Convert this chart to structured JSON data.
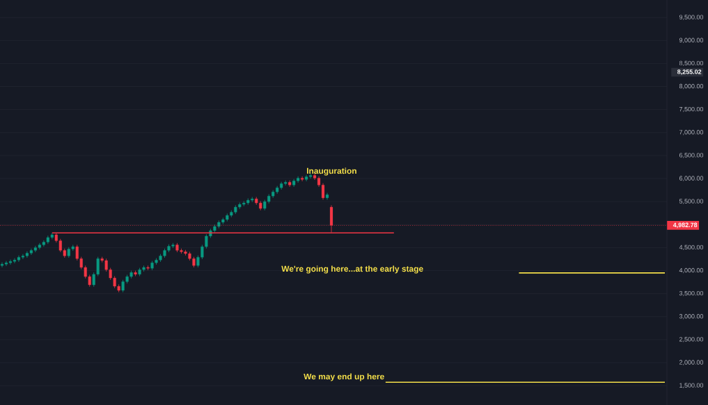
{
  "chart_data": {
    "type": "candlestick",
    "categories": [
      null,
      null,
      null,
      null,
      null,
      null,
      null,
      null,
      null,
      null,
      null,
      null,
      null,
      null,
      null,
      null,
      null,
      null,
      null,
      null,
      null,
      null,
      null,
      null,
      null,
      null,
      null,
      null,
      null,
      null,
      null,
      null,
      null,
      null,
      null,
      null,
      null,
      null,
      null,
      null,
      null,
      null,
      null,
      null,
      null,
      null,
      null,
      null,
      null,
      null,
      null,
      null,
      null,
      null,
      null,
      null,
      null,
      null,
      null,
      null,
      null,
      null,
      null,
      null,
      null,
      null,
      null,
      null,
      null,
      null,
      null,
      null,
      null,
      null,
      null,
      null,
      null,
      null,
      null,
      null,
      null,
      null,
      null,
      null,
      null,
      null,
      null,
      null,
      null,
      null,
      null,
      null,
      null,
      null,
      null,
      null,
      null,
      null,
      null,
      null,
      null,
      null,
      null,
      null,
      null,
      null,
      null,
      null,
      null,
      null,
      null,
      null,
      null,
      null,
      null,
      null,
      null,
      null,
      null,
      null,
      null,
      null,
      null,
      null,
      null,
      null,
      null,
      null,
      null,
      null,
      null,
      null,
      null,
      null,
      null,
      null,
      null,
      null,
      null,
      null,
      null,
      null,
      null,
      null,
      null,
      null,
      null,
      null,
      null,
      null,
      null,
      null,
      null,
      null,
      null,
      null,
      null,
      null,
      null,
      null
    ],
    "ohlc": [
      [
        4110,
        4180,
        4070,
        4140
      ],
      [
        4140,
        4210,
        4100,
        4170
      ],
      [
        4170,
        4240,
        4130,
        4200
      ],
      [
        4200,
        4270,
        4160,
        4230
      ],
      [
        4230,
        4330,
        4190,
        4290
      ],
      [
        4290,
        4360,
        4250,
        4320
      ],
      [
        4320,
        4420,
        4280,
        4380
      ],
      [
        4380,
        4480,
        4340,
        4440
      ],
      [
        4440,
        4540,
        4400,
        4500
      ],
      [
        4500,
        4600,
        4460,
        4560
      ],
      [
        4560,
        4660,
        4520,
        4620
      ],
      [
        4620,
        4760,
        4580,
        4720
      ],
      [
        4720,
        4820,
        4680,
        4780
      ],
      [
        4780,
        4820,
        4610,
        4650
      ],
      [
        4650,
        4690,
        4400,
        4440
      ],
      [
        4440,
        4480,
        4280,
        4320
      ],
      [
        4320,
        4510,
        4280,
        4470
      ],
      [
        4470,
        4560,
        4430,
        4520
      ],
      [
        4520,
        4560,
        4220,
        4260
      ],
      [
        4260,
        4300,
        4030,
        4070
      ],
      [
        4070,
        4110,
        3830,
        3870
      ],
      [
        3870,
        3910,
        3650,
        3690
      ],
      [
        3690,
        3960,
        3650,
        3920
      ],
      [
        3920,
        4300,
        3880,
        4260
      ],
      [
        4260,
        4300,
        4180,
        4220
      ],
      [
        4220,
        4260,
        3980,
        4020
      ],
      [
        4020,
        4060,
        3800,
        3840
      ],
      [
        3840,
        3880,
        3620,
        3660
      ],
      [
        3660,
        3700,
        3530,
        3570
      ],
      [
        3570,
        3800,
        3530,
        3760
      ],
      [
        3760,
        3910,
        3720,
        3870
      ],
      [
        3870,
        4000,
        3830,
        3960
      ],
      [
        3960,
        4000,
        3880,
        3920
      ],
      [
        3920,
        4060,
        3880,
        4020
      ],
      [
        4020,
        4110,
        3980,
        4070
      ],
      [
        4070,
        4110,
        4010,
        4050
      ],
      [
        4050,
        4210,
        4010,
        4170
      ],
      [
        4170,
        4270,
        4130,
        4230
      ],
      [
        4230,
        4360,
        4190,
        4320
      ],
      [
        4320,
        4480,
        4280,
        4440
      ],
      [
        4440,
        4570,
        4400,
        4530
      ],
      [
        4530,
        4600,
        4490,
        4560
      ],
      [
        4560,
        4600,
        4400,
        4440
      ],
      [
        4440,
        4480,
        4370,
        4410
      ],
      [
        4410,
        4450,
        4330,
        4370
      ],
      [
        4370,
        4410,
        4220,
        4260
      ],
      [
        4260,
        4300,
        4070,
        4110
      ],
      [
        4110,
        4330,
        4070,
        4290
      ],
      [
        4290,
        4560,
        4250,
        4520
      ],
      [
        4520,
        4790,
        4480,
        4750
      ],
      [
        4750,
        4910,
        4710,
        4870
      ],
      [
        4870,
        5000,
        4830,
        4960
      ],
      [
        4960,
        5090,
        4920,
        5050
      ],
      [
        5050,
        5150,
        5010,
        5110
      ],
      [
        5110,
        5240,
        5070,
        5200
      ],
      [
        5200,
        5310,
        5160,
        5270
      ],
      [
        5270,
        5420,
        5230,
        5380
      ],
      [
        5380,
        5480,
        5340,
        5440
      ],
      [
        5440,
        5510,
        5400,
        5470
      ],
      [
        5470,
        5570,
        5430,
        5530
      ],
      [
        5530,
        5600,
        5490,
        5560
      ],
      [
        5560,
        5600,
        5430,
        5470
      ],
      [
        5470,
        5510,
        5310,
        5350
      ],
      [
        5350,
        5540,
        5310,
        5500
      ],
      [
        5500,
        5660,
        5460,
        5620
      ],
      [
        5620,
        5750,
        5580,
        5710
      ],
      [
        5710,
        5840,
        5670,
        5800
      ],
      [
        5800,
        5930,
        5760,
        5890
      ],
      [
        5890,
        5960,
        5850,
        5920
      ],
      [
        5920,
        5960,
        5820,
        5860
      ],
      [
        5860,
        5990,
        5820,
        5950
      ],
      [
        5950,
        6050,
        5910,
        6010
      ],
      [
        6010,
        6050,
        5940,
        5980
      ],
      [
        5980,
        6080,
        5940,
        6040
      ],
      [
        6040,
        6110,
        6000,
        6070
      ],
      [
        6070,
        6110,
        5970,
        6010
      ],
      [
        6010,
        6050,
        5820,
        5860
      ],
      [
        5860,
        5900,
        5540,
        5580
      ],
      [
        5580,
        5690,
        5540,
        5650
      ],
      [
        5380,
        5420,
        4830,
        4982.78
      ],
      null,
      null,
      null,
      null,
      null,
      null,
      null,
      null,
      null,
      null,
      null,
      null,
      null,
      null,
      null,
      null,
      null,
      null,
      null,
      null,
      null,
      null,
      null,
      null,
      null,
      null,
      null,
      null,
      null,
      null,
      null,
      null,
      null,
      null,
      null,
      null,
      null,
      null,
      null,
      null,
      null,
      null,
      null,
      null,
      null,
      null,
      null,
      null,
      null,
      null,
      null,
      null,
      null,
      null,
      null,
      null,
      null,
      null,
      null,
      null,
      null,
      null,
      null,
      null,
      null,
      null,
      null,
      null,
      null,
      null,
      null,
      null,
      null,
      null,
      null,
      null,
      null,
      null,
      null,
      null
    ],
    "colors": [
      "#089981",
      "#089981",
      "#089981",
      "#089981",
      "#089981",
      "#089981",
      "#089981",
      "#089981",
      "#089981",
      "#089981",
      "#089981",
      "#089981",
      "#089981",
      "#f23645",
      "#f23645",
      "#f23645",
      "#089981",
      "#089981",
      "#f23645",
      "#f23645",
      "#f23645",
      "#f23645",
      "#089981",
      "#089981",
      "#f23645",
      "#f23645",
      "#f23645",
      "#f23645",
      "#f23645",
      "#089981",
      "#089981",
      "#089981",
      "#f23645",
      "#089981",
      "#089981",
      "#f23645",
      "#089981",
      "#089981",
      "#089981",
      "#089981",
      "#089981",
      "#089981",
      "#f23645",
      "#f23645",
      "#f23645",
      "#f23645",
      "#f23645",
      "#089981",
      "#089981",
      "#089981",
      "#089981",
      "#089981",
      "#089981",
      "#089981",
      "#089981",
      "#089981",
      "#089981",
      "#089981",
      "#089981",
      "#089981",
      "#089981",
      "#f23645",
      "#f23645",
      "#089981",
      "#089981",
      "#089981",
      "#089981",
      "#089981",
      "#089981",
      "#f23645",
      "#089981",
      "#089981",
      "#f23645",
      "#089981",
      "#089981",
      "#f23645",
      "#f23645",
      "#f23645",
      "#089981",
      "#f23645",
      null,
      null,
      null,
      null,
      null,
      null,
      null,
      null,
      null,
      null,
      null,
      null,
      null,
      null,
      null,
      null,
      null,
      null,
      null,
      null,
      null,
      null,
      null,
      null,
      null,
      null,
      null,
      null,
      null,
      null,
      null,
      null,
      null,
      null,
      null,
      null,
      null,
      null,
      null,
      null,
      null,
      null,
      null,
      null,
      null,
      null,
      null,
      null,
      null,
      null,
      null,
      null,
      null,
      null,
      null,
      null,
      null,
      null,
      null,
      null,
      null,
      null,
      null,
      null,
      null,
      null,
      null,
      null,
      null,
      null,
      null,
      null,
      null,
      null,
      null,
      null,
      null,
      null,
      null,
      null
    ],
    "series": [
      {
        "type": "line",
        "color": "#f23645",
        "values": [
          null,
          null,
          null,
          null,
          null,
          null,
          null,
          null,
          null,
          null,
          null,
          null,
          4820,
          4820,
          4820,
          4820,
          4820,
          4820,
          4820,
          4820,
          4820,
          4820,
          4820,
          4820,
          4820,
          4820,
          4820,
          4820,
          4820,
          4820,
          4820,
          4820,
          4820,
          4820,
          4820,
          4820,
          4820,
          4820,
          4820,
          4820,
          4820,
          4820,
          4820,
          4820,
          4820,
          4820,
          4820,
          4820,
          4820,
          4820,
          4820,
          4820,
          4820,
          4820,
          4820,
          4820,
          4820,
          4820,
          4820,
          4820,
          4820,
          4820,
          4820,
          4820,
          4820,
          4820,
          4820,
          4820,
          4820,
          4820,
          4820,
          4820,
          4820,
          4820,
          4820,
          4820,
          4820,
          4820,
          4820,
          4820,
          4820,
          4820,
          4820,
          4820,
          4820,
          4820,
          4820,
          4820,
          4820,
          4820,
          4820,
          4820,
          4820,
          4820,
          4820,
          null,
          null,
          null,
          null,
          null,
          null,
          null,
          null,
          null,
          null,
          null,
          null,
          null,
          null,
          null,
          null,
          null,
          null,
          null,
          null,
          null,
          null,
          null,
          null,
          null,
          null,
          null,
          null,
          null,
          null,
          null,
          null,
          null,
          null,
          null,
          null,
          null,
          null,
          null,
          null,
          null,
          null,
          null,
          null,
          null,
          null,
          null,
          null,
          null,
          null,
          null,
          null,
          null,
          null,
          null,
          null,
          null,
          null,
          null,
          null,
          null,
          null,
          null,
          null,
          null
        ]
      },
      {
        "type": "line",
        "color": "#f5e04a",
        "values": [
          null,
          null,
          null,
          null,
          null,
          null,
          null,
          null,
          null,
          null,
          null,
          null,
          null,
          null,
          null,
          null,
          null,
          null,
          null,
          null,
          null,
          null,
          null,
          null,
          null,
          null,
          null,
          null,
          null,
          null,
          null,
          null,
          null,
          null,
          null,
          null,
          null,
          null,
          null,
          null,
          null,
          null,
          null,
          null,
          null,
          null,
          null,
          null,
          null,
          null,
          null,
          null,
          null,
          null,
          null,
          null,
          null,
          null,
          null,
          null,
          null,
          null,
          null,
          null,
          null,
          null,
          null,
          null,
          null,
          null,
          null,
          null,
          null,
          null,
          null,
          null,
          null,
          null,
          null,
          null,
          null,
          null,
          null,
          null,
          null,
          null,
          null,
          null,
          null,
          null,
          null,
          null,
          null,
          null,
          null,
          null,
          null,
          null,
          null,
          null,
          null,
          null,
          null,
          null,
          null,
          null,
          null,
          null,
          null,
          null,
          null,
          null,
          null,
          null,
          null,
          null,
          null,
          null,
          null,
          null,
          null,
          null,
          null,
          null,
          3950,
          3950,
          3950,
          3950,
          3950,
          3950,
          3950,
          3950,
          3950,
          3950,
          3950,
          3950,
          3950,
          3950,
          3950,
          3950,
          3950,
          3950,
          3950,
          3950,
          3950,
          3950,
          3950,
          3950,
          3950,
          3950,
          3950,
          3950,
          3950,
          3950,
          3950,
          3950,
          3950,
          3950,
          3950,
          3950
        ]
      },
      {
        "type": "line",
        "color": "#f5e04a",
        "values": [
          null,
          null,
          null,
          null,
          null,
          null,
          null,
          null,
          null,
          null,
          null,
          null,
          null,
          null,
          null,
          null,
          null,
          null,
          null,
          null,
          null,
          null,
          null,
          null,
          null,
          null,
          null,
          null,
          null,
          null,
          null,
          null,
          null,
          null,
          null,
          null,
          null,
          null,
          null,
          null,
          null,
          null,
          null,
          null,
          null,
          null,
          null,
          null,
          null,
          null,
          null,
          null,
          null,
          null,
          null,
          null,
          null,
          null,
          null,
          null,
          null,
          null,
          null,
          null,
          null,
          null,
          null,
          null,
          null,
          null,
          null,
          null,
          null,
          null,
          null,
          null,
          null,
          null,
          null,
          null,
          null,
          null,
          null,
          null,
          null,
          null,
          null,
          null,
          null,
          null,
          null,
          null,
          1575,
          1575,
          1575,
          1575,
          1575,
          1575,
          1575,
          1575,
          1575,
          1575,
          1575,
          1575,
          1575,
          1575,
          1575,
          1575,
          1575,
          1575,
          1575,
          1575,
          1575,
          1575,
          1575,
          1575,
          1575,
          1575,
          1575,
          1575,
          1575,
          1575,
          1575,
          1575,
          1575,
          1575,
          1575,
          1575,
          1575,
          1575,
          1575,
          1575,
          1575,
          1575,
          1575,
          1575,
          1575,
          1575,
          1575,
          1575,
          1575,
          1575,
          1575,
          1575,
          1575,
          1575,
          1575,
          1575,
          1575,
          1575,
          1575,
          1575,
          1575,
          1575,
          1575,
          1575,
          1575,
          1575,
          1575,
          1575
        ]
      }
    ],
    "ylim": [
      1080,
      9880
    ],
    "yticks": [
      {
        "value": 1500,
        "label": "1,500.00"
      },
      {
        "value": 2000,
        "label": "2,000.00"
      },
      {
        "value": 2500,
        "label": "2,500.00"
      },
      {
        "value": 3000,
        "label": "3,000.00"
      },
      {
        "value": 3500,
        "label": "3,500.00"
      },
      {
        "value": 4000,
        "label": "4,000.00"
      },
      {
        "value": 4500,
        "label": "4,500.00"
      },
      {
        "value": 5000,
        "label": null
      },
      {
        "value": 5500,
        "label": "5,500.00"
      },
      {
        "value": 6000,
        "label": "6,000.00"
      },
      {
        "value": 6500,
        "label": "6,500.00"
      },
      {
        "value": 7000,
        "label": "7,000.00"
      },
      {
        "value": 7500,
        "label": "7,500.00"
      },
      {
        "value": 8000,
        "label": "8,000.00"
      },
      {
        "value": 8500,
        "label": "8,500.00"
      },
      {
        "value": 9000,
        "label": "9,000.00"
      },
      {
        "value": 9500,
        "label": "9,500.00"
      }
    ],
    "ref_lines": [
      {
        "axis": "y",
        "value": 4982.78,
        "label": "4,982.78",
        "color": "#f23645",
        "line_style": "dotted"
      }
    ],
    "annotations": [
      "Inauguration",
      "We're going here...at the early stage",
      "We may end up here",
      "8,255.02"
    ],
    "grid": "y",
    "tick_labels": "y",
    "line_style": "solid"
  }
}
